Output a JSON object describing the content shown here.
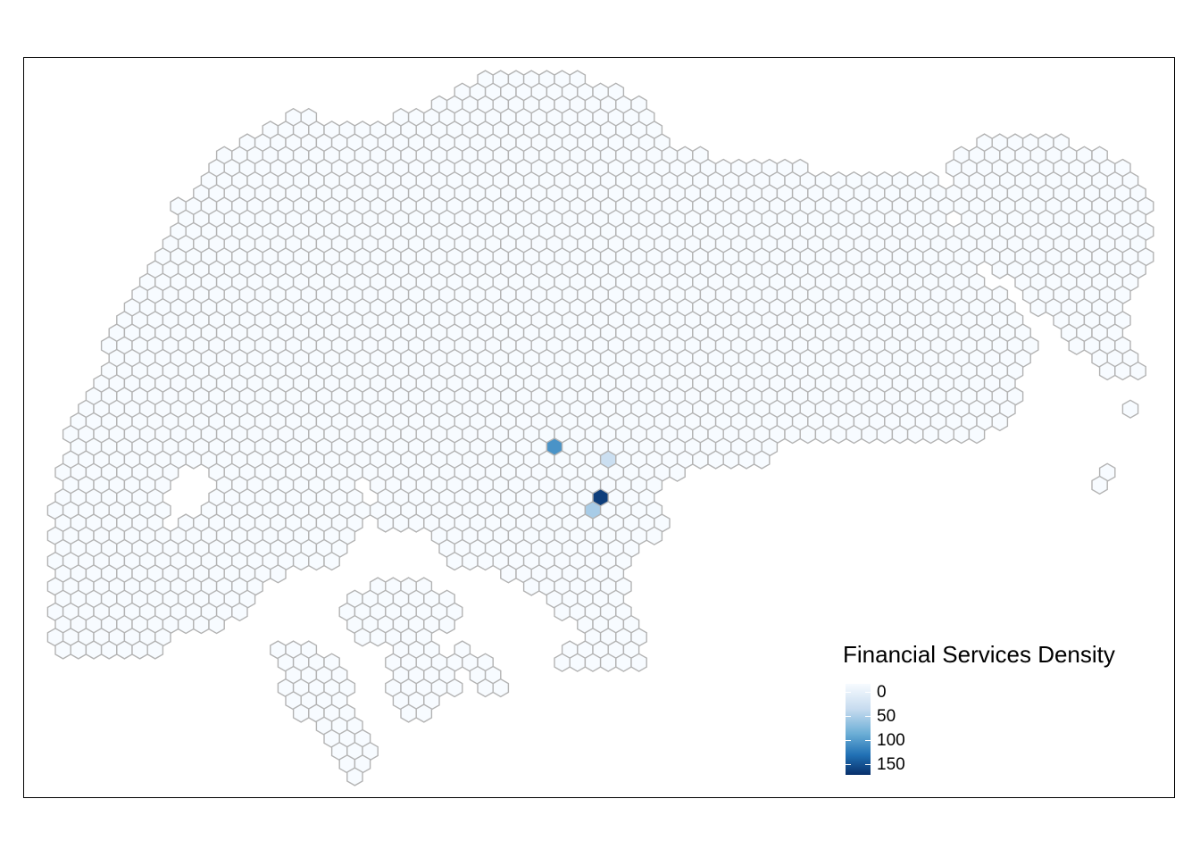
{
  "map": {
    "type": "hexbin-choropleth",
    "region": "island",
    "fill_scale": [
      "#f7fbff",
      "#c6dbef",
      "#6baed6",
      "#2171b5",
      "#08306b"
    ],
    "hex_border_color": "#b3b3b3",
    "default_value": 0,
    "highlighted_cells": [
      {
        "id": "hex-a",
        "value": 170
      },
      {
        "id": "hex-b",
        "value": 110
      },
      {
        "id": "hex-c",
        "value": 60
      },
      {
        "id": "hex-d",
        "value": 40
      }
    ]
  },
  "legend": {
    "title": "Financial Services Density",
    "ticks": [
      {
        "label": "0",
        "value": 0
      },
      {
        "label": "50",
        "value": 50
      },
      {
        "label": "100",
        "value": 100
      },
      {
        "label": "150",
        "value": 150
      }
    ],
    "range": [
      0,
      180
    ]
  }
}
